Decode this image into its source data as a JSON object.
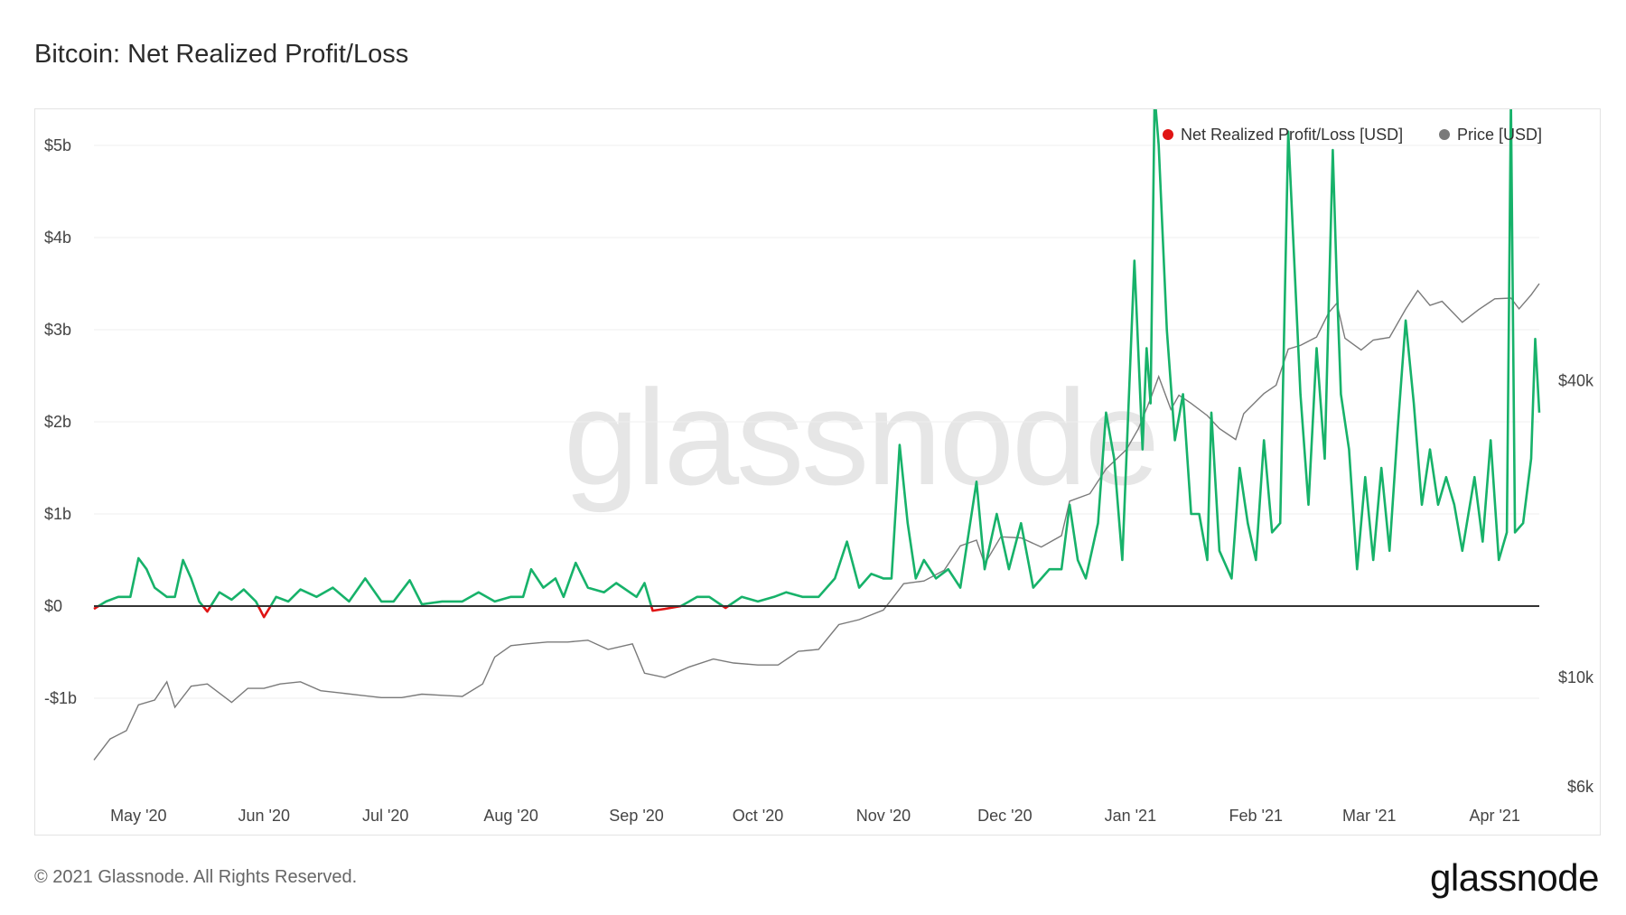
{
  "title": "Bitcoin: Net Realized Profit/Loss",
  "footer": {
    "copyright": "© 2021 Glassnode. All Rights Reserved.",
    "logo": "glassnode"
  },
  "watermark": "glassnode",
  "colors": {
    "profit": "#17b26a",
    "loss": "#e01414",
    "price": "#7a7a7a",
    "grid": "#efefef",
    "zero_line": "#333333"
  },
  "chart_data": {
    "type": "line",
    "title": "Bitcoin: Net Realized Profit/Loss",
    "x_range": [
      "2020-04-20",
      "2021-04-12"
    ],
    "x_tick_labels": [
      "May '20",
      "Jun '20",
      "Jul '20",
      "Aug '20",
      "Sep '20",
      "Oct '20",
      "Nov '20",
      "Dec '20",
      "Jan '21",
      "Feb '21",
      "Mar '21",
      "Apr '21"
    ],
    "y_left": {
      "unit": "USD billions",
      "range": [
        -1,
        6
      ],
      "ticks": [
        -1,
        0,
        1,
        2,
        3,
        4,
        5
      ],
      "tick_labels": [
        "-$1b",
        "$0",
        "$1b",
        "$2b",
        "$3b",
        "$4b",
        "$5b"
      ]
    },
    "y_right": {
      "unit": "USD",
      "scale": "log",
      "range": [
        6000,
        80000
      ],
      "ticks": [
        6000,
        10000,
        40000
      ],
      "tick_labels": [
        "$6k",
        "$10k",
        "$40k"
      ]
    },
    "legend": {
      "position": "top-right"
    },
    "grid": true,
    "series": [
      {
        "name": "Net Realized Profit/Loss [USD]",
        "axis": "left",
        "color_positive": "#17b26a",
        "color_negative": "#e01414",
        "points": [
          [
            "2020-04-20",
            -0.03
          ],
          [
            "2020-04-23",
            0.05
          ],
          [
            "2020-04-26",
            0.1
          ],
          [
            "2020-04-29",
            0.1
          ],
          [
            "2020-05-01",
            0.52
          ],
          [
            "2020-05-03",
            0.4
          ],
          [
            "2020-05-05",
            0.2
          ],
          [
            "2020-05-08",
            0.1
          ],
          [
            "2020-05-10",
            0.1
          ],
          [
            "2020-05-12",
            0.5
          ],
          [
            "2020-05-14",
            0.3
          ],
          [
            "2020-05-16",
            0.05
          ],
          [
            "2020-05-18",
            -0.06
          ],
          [
            "2020-05-21",
            0.15
          ],
          [
            "2020-05-24",
            0.07
          ],
          [
            "2020-05-27",
            0.18
          ],
          [
            "2020-05-30",
            0.05
          ],
          [
            "2020-06-01",
            -0.12
          ],
          [
            "2020-06-04",
            0.1
          ],
          [
            "2020-06-07",
            0.05
          ],
          [
            "2020-06-10",
            0.18
          ],
          [
            "2020-06-14",
            0.1
          ],
          [
            "2020-06-18",
            0.2
          ],
          [
            "2020-06-22",
            0.05
          ],
          [
            "2020-06-26",
            0.3
          ],
          [
            "2020-06-30",
            0.05
          ],
          [
            "2020-07-03",
            0.05
          ],
          [
            "2020-07-07",
            0.28
          ],
          [
            "2020-07-10",
            0.02
          ],
          [
            "2020-07-15",
            0.05
          ],
          [
            "2020-07-20",
            0.05
          ],
          [
            "2020-07-24",
            0.15
          ],
          [
            "2020-07-28",
            0.05
          ],
          [
            "2020-08-01",
            0.1
          ],
          [
            "2020-08-04",
            0.1
          ],
          [
            "2020-08-06",
            0.4
          ],
          [
            "2020-08-09",
            0.2
          ],
          [
            "2020-08-12",
            0.3
          ],
          [
            "2020-08-14",
            0.1
          ],
          [
            "2020-08-17",
            0.47
          ],
          [
            "2020-08-20",
            0.2
          ],
          [
            "2020-08-24",
            0.15
          ],
          [
            "2020-08-27",
            0.25
          ],
          [
            "2020-09-01",
            0.1
          ],
          [
            "2020-09-03",
            0.25
          ],
          [
            "2020-09-05",
            -0.05
          ],
          [
            "2020-09-08",
            -0.03
          ],
          [
            "2020-09-12",
            0.0
          ],
          [
            "2020-09-16",
            0.1
          ],
          [
            "2020-09-19",
            0.1
          ],
          [
            "2020-09-23",
            -0.02
          ],
          [
            "2020-09-27",
            0.1
          ],
          [
            "2020-10-01",
            0.05
          ],
          [
            "2020-10-05",
            0.1
          ],
          [
            "2020-10-08",
            0.15
          ],
          [
            "2020-10-12",
            0.1
          ],
          [
            "2020-10-16",
            0.1
          ],
          [
            "2020-10-20",
            0.3
          ],
          [
            "2020-10-23",
            0.7
          ],
          [
            "2020-10-26",
            0.2
          ],
          [
            "2020-10-29",
            0.35
          ],
          [
            "2020-11-01",
            0.3
          ],
          [
            "2020-11-03",
            0.3
          ],
          [
            "2020-11-05",
            1.75
          ],
          [
            "2020-11-07",
            0.9
          ],
          [
            "2020-11-09",
            0.3
          ],
          [
            "2020-11-11",
            0.5
          ],
          [
            "2020-11-14",
            0.3
          ],
          [
            "2020-11-17",
            0.4
          ],
          [
            "2020-11-20",
            0.2
          ],
          [
            "2020-11-24",
            1.35
          ],
          [
            "2020-11-26",
            0.4
          ],
          [
            "2020-11-29",
            1.0
          ],
          [
            "2020-12-02",
            0.4
          ],
          [
            "2020-12-05",
            0.9
          ],
          [
            "2020-12-08",
            0.2
          ],
          [
            "2020-12-12",
            0.4
          ],
          [
            "2020-12-15",
            0.4
          ],
          [
            "2020-12-17",
            1.1
          ],
          [
            "2020-12-19",
            0.5
          ],
          [
            "2020-12-21",
            0.3
          ],
          [
            "2020-12-24",
            0.9
          ],
          [
            "2020-12-26",
            2.1
          ],
          [
            "2020-12-28",
            1.6
          ],
          [
            "2020-12-30",
            0.5
          ],
          [
            "2021-01-02",
            3.75
          ],
          [
            "2021-01-04",
            1.7
          ],
          [
            "2021-01-05",
            2.8
          ],
          [
            "2021-01-06",
            2.2
          ],
          [
            "2021-01-07",
            5.55
          ],
          [
            "2021-01-08",
            5.0
          ],
          [
            "2021-01-10",
            3.0
          ],
          [
            "2021-01-12",
            1.8
          ],
          [
            "2021-01-14",
            2.3
          ],
          [
            "2021-01-16",
            1.0
          ],
          [
            "2021-01-18",
            1.0
          ],
          [
            "2021-01-20",
            0.5
          ],
          [
            "2021-01-21",
            2.1
          ],
          [
            "2021-01-23",
            0.6
          ],
          [
            "2021-01-26",
            0.3
          ],
          [
            "2021-01-28",
            1.5
          ],
          [
            "2021-01-30",
            0.9
          ],
          [
            "2021-02-01",
            0.5
          ],
          [
            "2021-02-03",
            1.8
          ],
          [
            "2021-02-05",
            0.8
          ],
          [
            "2021-02-07",
            0.9
          ],
          [
            "2021-02-09",
            5.15
          ],
          [
            "2021-02-10",
            4.2
          ],
          [
            "2021-02-12",
            2.3
          ],
          [
            "2021-02-14",
            1.1
          ],
          [
            "2021-02-16",
            2.8
          ],
          [
            "2021-02-18",
            1.6
          ],
          [
            "2021-02-20",
            4.95
          ],
          [
            "2021-02-21",
            3.5
          ],
          [
            "2021-02-22",
            2.3
          ],
          [
            "2021-02-24",
            1.7
          ],
          [
            "2021-02-26",
            0.4
          ],
          [
            "2021-02-28",
            1.4
          ],
          [
            "2021-03-02",
            0.5
          ],
          [
            "2021-03-04",
            1.5
          ],
          [
            "2021-03-06",
            0.6
          ],
          [
            "2021-03-08",
            1.9
          ],
          [
            "2021-03-10",
            3.1
          ],
          [
            "2021-03-12",
            2.2
          ],
          [
            "2021-03-14",
            1.1
          ],
          [
            "2021-03-16",
            1.7
          ],
          [
            "2021-03-18",
            1.1
          ],
          [
            "2021-03-20",
            1.4
          ],
          [
            "2021-03-22",
            1.1
          ],
          [
            "2021-03-24",
            0.6
          ],
          [
            "2021-03-27",
            1.4
          ],
          [
            "2021-03-29",
            0.7
          ],
          [
            "2021-03-31",
            1.8
          ],
          [
            "2021-04-02",
            0.5
          ],
          [
            "2021-04-04",
            0.8
          ],
          [
            "2021-04-05",
            5.5
          ],
          [
            "2021-04-06",
            0.8
          ],
          [
            "2021-04-08",
            0.9
          ],
          [
            "2021-04-10",
            1.6
          ],
          [
            "2021-04-11",
            2.9
          ],
          [
            "2021-04-12",
            2.1
          ]
        ]
      },
      {
        "name": "Price [USD]",
        "axis": "right",
        "color": "#7a7a7a",
        "points": [
          [
            "2020-04-20",
            6800
          ],
          [
            "2020-04-24",
            7500
          ],
          [
            "2020-04-28",
            7800
          ],
          [
            "2020-05-01",
            8800
          ],
          [
            "2020-05-05",
            9000
          ],
          [
            "2020-05-08",
            9800
          ],
          [
            "2020-05-10",
            8700
          ],
          [
            "2020-05-14",
            9600
          ],
          [
            "2020-05-18",
            9700
          ],
          [
            "2020-05-24",
            8900
          ],
          [
            "2020-05-28",
            9500
          ],
          [
            "2020-06-01",
            9500
          ],
          [
            "2020-06-05",
            9700
          ],
          [
            "2020-06-10",
            9800
          ],
          [
            "2020-06-15",
            9400
          ],
          [
            "2020-06-20",
            9300
          ],
          [
            "2020-06-25",
            9200
          ],
          [
            "2020-06-30",
            9100
          ],
          [
            "2020-07-05",
            9100
          ],
          [
            "2020-07-10",
            9250
          ],
          [
            "2020-07-15",
            9200
          ],
          [
            "2020-07-20",
            9150
          ],
          [
            "2020-07-25",
            9700
          ],
          [
            "2020-07-28",
            11000
          ],
          [
            "2020-08-01",
            11600
          ],
          [
            "2020-08-05",
            11700
          ],
          [
            "2020-08-10",
            11800
          ],
          [
            "2020-08-15",
            11800
          ],
          [
            "2020-08-20",
            11900
          ],
          [
            "2020-08-25",
            11400
          ],
          [
            "2020-08-31",
            11700
          ],
          [
            "2020-09-03",
            10200
          ],
          [
            "2020-09-08",
            10000
          ],
          [
            "2020-09-14",
            10500
          ],
          [
            "2020-09-20",
            10900
          ],
          [
            "2020-09-25",
            10700
          ],
          [
            "2020-10-01",
            10600
          ],
          [
            "2020-10-06",
            10600
          ],
          [
            "2020-10-11",
            11300
          ],
          [
            "2020-10-16",
            11400
          ],
          [
            "2020-10-21",
            12800
          ],
          [
            "2020-10-26",
            13100
          ],
          [
            "2020-11-01",
            13700
          ],
          [
            "2020-11-06",
            15500
          ],
          [
            "2020-11-11",
            15700
          ],
          [
            "2020-11-16",
            16500
          ],
          [
            "2020-11-20",
            18500
          ],
          [
            "2020-11-24",
            19000
          ],
          [
            "2020-11-26",
            17000
          ],
          [
            "2020-11-30",
            19300
          ],
          [
            "2020-12-05",
            19200
          ],
          [
            "2020-12-10",
            18400
          ],
          [
            "2020-12-15",
            19400
          ],
          [
            "2020-12-17",
            22800
          ],
          [
            "2020-12-22",
            23600
          ],
          [
            "2020-12-26",
            26500
          ],
          [
            "2020-12-31",
            29000
          ],
          [
            "2021-01-03",
            32000
          ],
          [
            "2021-01-06",
            36800
          ],
          [
            "2021-01-08",
            40800
          ],
          [
            "2021-01-11",
            35000
          ],
          [
            "2021-01-13",
            37400
          ],
          [
            "2021-01-16",
            36000
          ],
          [
            "2021-01-20",
            34000
          ],
          [
            "2021-01-23",
            32000
          ],
          [
            "2021-01-27",
            30400
          ],
          [
            "2021-01-29",
            34300
          ],
          [
            "2021-02-03",
            37700
          ],
          [
            "2021-02-06",
            39200
          ],
          [
            "2021-02-09",
            46400
          ],
          [
            "2021-02-12",
            47200
          ],
          [
            "2021-02-16",
            49100
          ],
          [
            "2021-02-19",
            55000
          ],
          [
            "2021-02-21",
            57500
          ],
          [
            "2021-02-23",
            48800
          ],
          [
            "2021-02-27",
            46200
          ],
          [
            "2021-03-02",
            48400
          ],
          [
            "2021-03-06",
            49000
          ],
          [
            "2021-03-10",
            55900
          ],
          [
            "2021-03-13",
            61000
          ],
          [
            "2021-03-16",
            56900
          ],
          [
            "2021-03-19",
            58000
          ],
          [
            "2021-03-24",
            52600
          ],
          [
            "2021-03-28",
            55800
          ],
          [
            "2021-04-01",
            58700
          ],
          [
            "2021-04-05",
            58900
          ],
          [
            "2021-04-07",
            56000
          ],
          [
            "2021-04-10",
            59800
          ],
          [
            "2021-04-12",
            63000
          ]
        ]
      }
    ]
  },
  "legend_items": [
    {
      "label": "Net Realized Profit/Loss [USD]",
      "color": "#e01414"
    },
    {
      "label": "Price [USD]",
      "color": "#7a7a7a"
    }
  ]
}
